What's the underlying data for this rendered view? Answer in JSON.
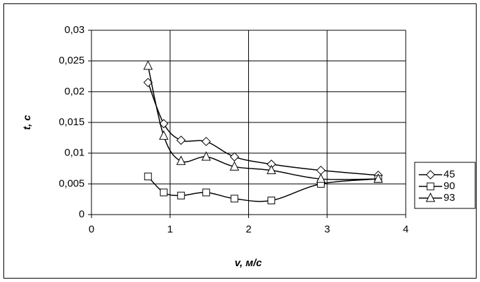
{
  "chart_data": {
    "type": "scatter-smooth",
    "x_label": "v, м/с",
    "y_label": "t, c",
    "xlim": [
      0,
      4
    ],
    "xticks": [
      0,
      1,
      2,
      3,
      4
    ],
    "ylim": [
      0,
      0.03
    ],
    "yticks": [
      0,
      {
        "value": 0.005,
        "label": "0,005"
      },
      {
        "value": 0.01,
        "label": "0,01"
      },
      {
        "value": 0.015,
        "label": "0,015"
      },
      {
        "value": 0.02,
        "label": "0,02"
      },
      {
        "value": 0.025,
        "label": "0,025"
      },
      {
        "value": 0.03,
        "label": "0,03"
      }
    ],
    "grid": true,
    "legend": "right",
    "series": [
      {
        "name": "45",
        "color": "#000000",
        "marker": "diamond",
        "x": [
          0.72,
          0.92,
          1.14,
          1.46,
          1.82,
          2.29,
          2.92,
          3.65
        ],
        "values": [
          0.0215,
          0.0148,
          0.0121,
          0.0119,
          0.0094,
          0.0082,
          0.0072,
          0.0064
        ]
      },
      {
        "name": "90",
        "color": "#000000",
        "marker": "square",
        "x": [
          0.72,
          0.92,
          1.14,
          1.46,
          1.82,
          2.29,
          2.92,
          3.65
        ],
        "values": [
          0.0062,
          0.0036,
          0.0031,
          0.0036,
          0.0026,
          0.0023,
          0.005,
          0.0058
        ]
      },
      {
        "name": "93",
        "color": "#000000",
        "marker": "triangle",
        "x": [
          0.72,
          0.92,
          1.14,
          1.46,
          1.82,
          2.29,
          2.92,
          3.65
        ],
        "values": [
          0.0242,
          0.0128,
          0.0087,
          0.0094,
          0.0078,
          0.0072,
          0.0058,
          0.0058
        ]
      }
    ]
  }
}
